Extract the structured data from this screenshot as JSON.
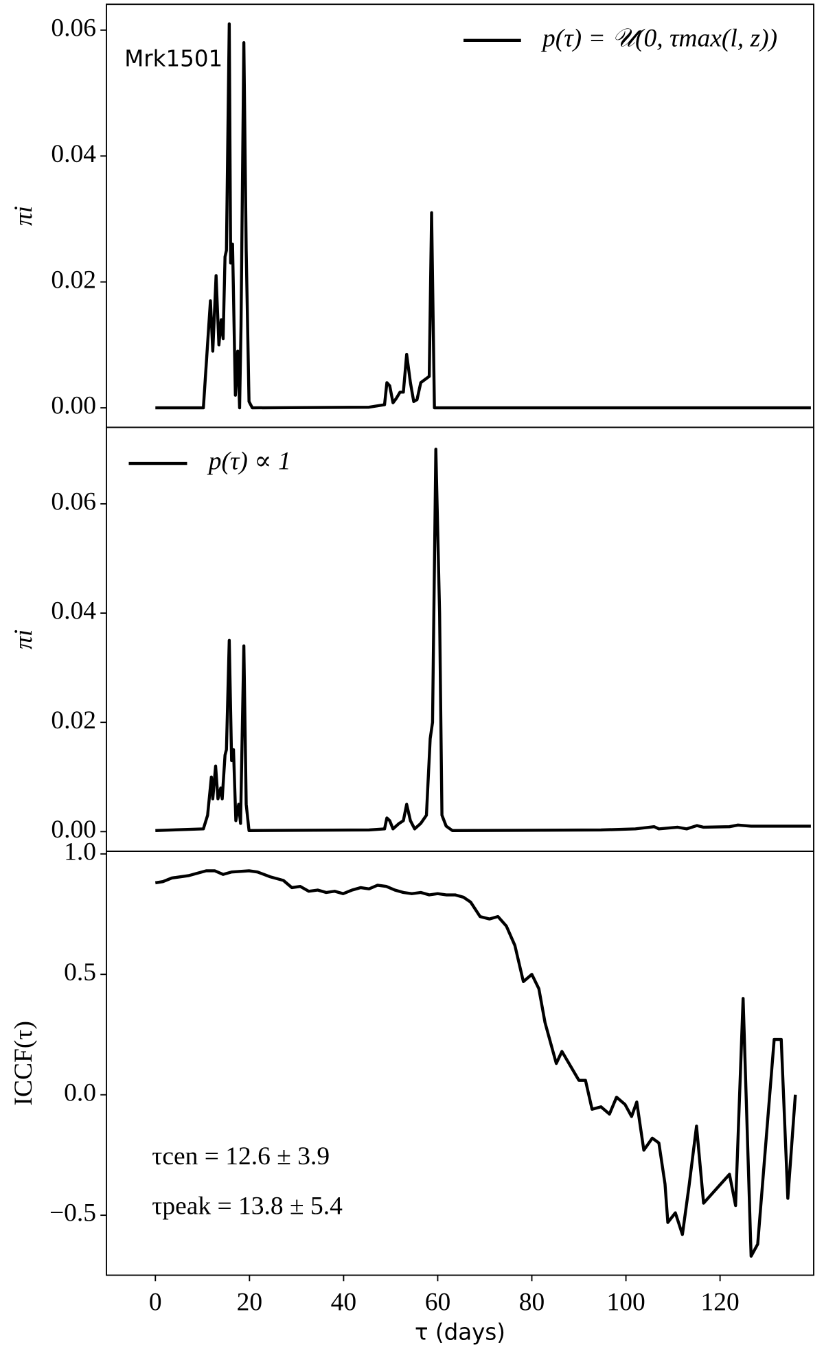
{
  "chart_data": [
    {
      "type": "line",
      "ylabel": "πi",
      "annotations": [
        "Mrk1501"
      ],
      "legend": "upper right",
      "xlim": [
        -10.4,
        139.9
      ],
      "ylim": [
        -0.0031,
        0.0641
      ],
      "yticks": [
        {
          "value": 0,
          "label": "0.00"
        },
        {
          "value": 0.02,
          "label": "0.02"
        },
        {
          "value": 0.04,
          "label": "0.04"
        },
        {
          "value": 0.06,
          "label": "0.06"
        }
      ],
      "x": [
        0,
        10.2,
        11.7,
        12.2,
        12.9,
        13.5,
        14.0,
        14.4,
        14.8,
        15.1,
        15.7,
        16.0,
        16.4,
        17.0,
        17.5,
        17.9,
        18.2,
        18.8,
        19.3,
        19.9,
        20.6,
        45.4,
        48.7,
        49.2,
        49.8,
        50.5,
        51.2,
        52.0,
        52.7,
        53.4,
        54.2,
        54.9,
        55.6,
        56.4,
        57.3,
        58.2,
        58.7,
        59.3,
        139.3
      ],
      "series": [
        {
          "name": "p(τ) = 𝒰(0, τmax(l, z))",
          "color": "#000000",
          "values": [
            0,
            0,
            0.017,
            0.009,
            0.021,
            0.01,
            0.014,
            0.011,
            0.024,
            0.025,
            0.061,
            0.023,
            0.026,
            0.002,
            0.009,
            0,
            0.013,
            0.058,
            0.025,
            0.001,
            0,
            0.0001,
            0.0005,
            0.004,
            0.0035,
            0.0008,
            0.0015,
            0.0025,
            0.0025,
            0.0085,
            0.004,
            0.001,
            0.0013,
            0.004,
            0.0045,
            0.005,
            0.031,
            0,
            0
          ]
        }
      ]
    },
    {
      "type": "line",
      "ylabel": "πi",
      "legend": "upper left",
      "xlim": [
        -10.4,
        139.9
      ],
      "ylim": [
        -0.0036,
        0.074
      ],
      "yticks": [
        {
          "value": 0,
          "label": "0.00"
        },
        {
          "value": 0.02,
          "label": "0.02"
        },
        {
          "value": 0.04,
          "label": "0.04"
        },
        {
          "value": 0.06,
          "label": "0.06"
        }
      ],
      "x": [
        0,
        10.2,
        11.1,
        11.9,
        12.2,
        12.8,
        13.3,
        13.9,
        14.2,
        14.8,
        15.1,
        15.7,
        16.2,
        16.6,
        17.1,
        17.7,
        18.1,
        18.8,
        19.3,
        19.9,
        45.4,
        48.7,
        49.2,
        49.8,
        50.5,
        51.8,
        52.7,
        53.4,
        54.2,
        55.1,
        56.4,
        57.6,
        58.4,
        58.9,
        59.6,
        60.4,
        60.9,
        61.8,
        63.1,
        94.7,
        102.0,
        106.0,
        107.0,
        111.0,
        112.9,
        115.1,
        116.5,
        122.0,
        123.8,
        126.6,
        139.3
      ],
      "series": [
        {
          "name": "p(τ) ∝ 1",
          "color": "#000000",
          "values": [
            0.0002,
            0.0005,
            0.003,
            0.01,
            0.006,
            0.012,
            0.006,
            0.008,
            0.006,
            0.014,
            0.015,
            0.035,
            0.013,
            0.015,
            0.002,
            0.005,
            0.0015,
            0.034,
            0.005,
            0.0002,
            0.0003,
            0.0005,
            0.0025,
            0.002,
            0.0005,
            0.0015,
            0.002,
            0.005,
            0.002,
            0.0005,
            0.0015,
            0.003,
            0.017,
            0.02,
            0.07,
            0.04,
            0.003,
            0.001,
            0.0002,
            0.0003,
            0.0005,
            0.0009,
            0.0005,
            0.0008,
            0.0005,
            0.0011,
            0.0008,
            0.0009,
            0.0012,
            0.001,
            0.001
          ]
        }
      ]
    },
    {
      "type": "line",
      "ylabel": "ICCF(τ)",
      "xlabel": "τ (days)",
      "annotations": [
        "τcen = 12.6 ± 3.9",
        "τpeak = 13.8 ± 5.4"
      ],
      "xlim": [
        -10.4,
        139.9
      ],
      "ylim": [
        -0.749,
        1.011
      ],
      "xticks": [
        0,
        20,
        40,
        60,
        80,
        100,
        120
      ],
      "yticks": [
        {
          "value": -0.5,
          "label": "−0.5"
        },
        {
          "value": 0,
          "label": "0.0"
        },
        {
          "value": 0.5,
          "label": "0.5"
        },
        {
          "value": 1,
          "label": "1.0"
        }
      ],
      "x": [
        0,
        1.6,
        3.5,
        5.3,
        7.1,
        10.8,
        12.6,
        14.4,
        16.2,
        19.9,
        21.7,
        24.4,
        27.2,
        29.0,
        30.8,
        32.6,
        34.5,
        36.3,
        38.1,
        39.9,
        41.8,
        43.6,
        45.4,
        47.2,
        49.1,
        50.9,
        52.7,
        54.5,
        56.4,
        58.2,
        60.0,
        61.8,
        63.7,
        65.5,
        67.0,
        69.0,
        71.0,
        72.8,
        74.6,
        76.4,
        78.2,
        80.0,
        81.5,
        82.8,
        85.2,
        86.4,
        90.0,
        91.4,
        92.8,
        94.7,
        96.5,
        98.0,
        99.8,
        101.2,
        102.3,
        103.8,
        105.6,
        107.0,
        108.3,
        108.9,
        110.5,
        112.0,
        113.4,
        115.0,
        116.5,
        122.0,
        123.3,
        124.9,
        126.6,
        128.0,
        131.5,
        133.0,
        134.4,
        136.0
      ],
      "series": [
        {
          "color": "#000000",
          "values": [
            0.88,
            0.885,
            0.9,
            0.905,
            0.91,
            0.93,
            0.93,
            0.915,
            0.925,
            0.93,
            0.925,
            0.905,
            0.89,
            0.86,
            0.865,
            0.845,
            0.85,
            0.84,
            0.845,
            0.835,
            0.85,
            0.86,
            0.855,
            0.87,
            0.865,
            0.85,
            0.84,
            0.835,
            0.84,
            0.83,
            0.835,
            0.83,
            0.83,
            0.82,
            0.8,
            0.74,
            0.73,
            0.74,
            0.7,
            0.62,
            0.47,
            0.5,
            0.44,
            0.3,
            0.13,
            0.18,
            0.06,
            0.06,
            -0.06,
            -0.05,
            -0.08,
            -0.01,
            -0.04,
            -0.09,
            -0.03,
            -0.23,
            -0.18,
            -0.2,
            -0.37,
            -0.53,
            -0.49,
            -0.58,
            -0.38,
            -0.13,
            -0.45,
            -0.33,
            -0.46,
            0.4,
            -0.67,
            -0.62,
            0.23,
            0.23,
            -0.43,
            0
          ]
        }
      ]
    }
  ]
}
